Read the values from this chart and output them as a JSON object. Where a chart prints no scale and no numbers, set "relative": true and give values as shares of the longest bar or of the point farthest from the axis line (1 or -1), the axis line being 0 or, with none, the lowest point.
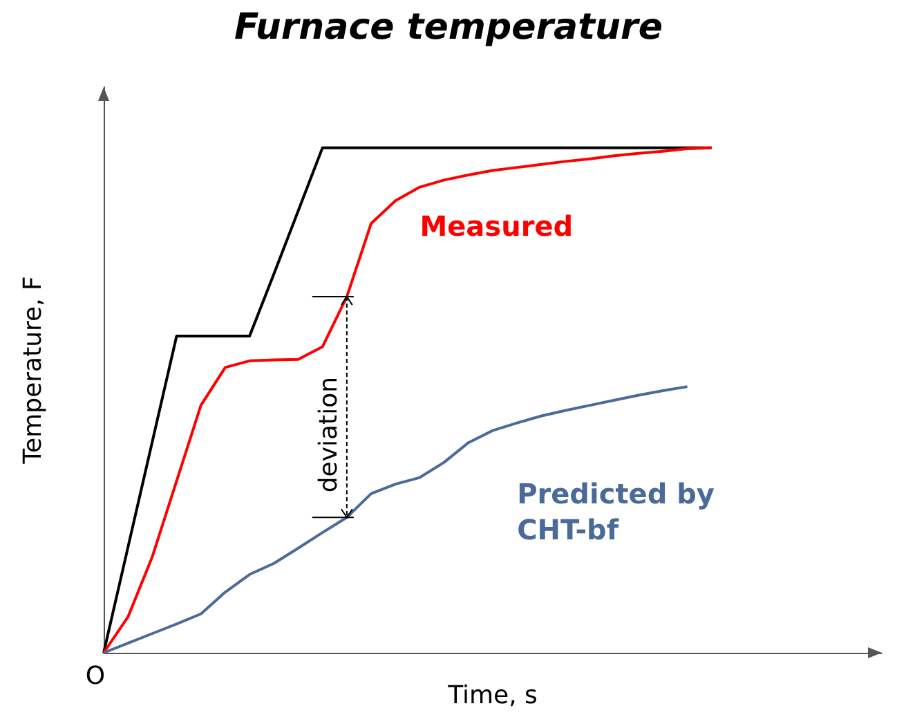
{
  "chart_data": {
    "type": "line",
    "title": "Furnace temperature",
    "xlabel": "Time, s",
    "ylabel": "Temperature, F",
    "relative": true,
    "marker": "none",
    "line_style": "solid",
    "grid": false,
    "legend": false,
    "annotations": [
      "O",
      "deviation"
    ],
    "categories": [
      null,
      null,
      null,
      null,
      null,
      null,
      null,
      null,
      null,
      null,
      null,
      null,
      null,
      null,
      null,
      null,
      null,
      null,
      null,
      null,
      null,
      null,
      null,
      null,
      null,
      null,
      null,
      null,
      null,
      null,
      null,
      null,
      null
    ],
    "series": [
      {
        "color": "#000000",
        "values": [
          0,
          0.209,
          0.418,
          0.627,
          0.627,
          0.627,
          0.627,
          0.75,
          0.875,
          1,
          1,
          1,
          1,
          1,
          1,
          1,
          1,
          1,
          1,
          1,
          1,
          1,
          1,
          1,
          1,
          1,
          null,
          null,
          null,
          null,
          null,
          null,
          null
        ]
      },
      {
        "name": "Measured",
        "color": "#ff0000",
        "values": [
          0,
          0.071,
          0.19,
          0.34,
          0.49,
          0.565,
          0.578,
          0.58,
          0.581,
          0.606,
          0.705,
          0.85,
          0.895,
          0.922,
          0.936,
          0.946,
          0.955,
          0.961,
          0.967,
          0.973,
          0.978,
          0.984,
          0.989,
          0.993,
          0.998,
          1,
          null,
          null,
          null,
          null,
          null,
          null,
          null
        ]
      },
      {
        "name": "Predicted by CHT-bf",
        "color": "#4a6a9a",
        "values": [
          0,
          0.019,
          0.038,
          0.057,
          0.077,
          0.12,
          0.155,
          0.177,
          0.207,
          0.238,
          0.268,
          0.315,
          0.334,
          0.347,
          0.377,
          0.416,
          0.44,
          0.455,
          0.469,
          0.48,
          0.49,
          0.5,
          0.51,
          0.519,
          0.527,
          null,
          null,
          null,
          null,
          null,
          null,
          null,
          null
        ]
      }
    ]
  }
}
